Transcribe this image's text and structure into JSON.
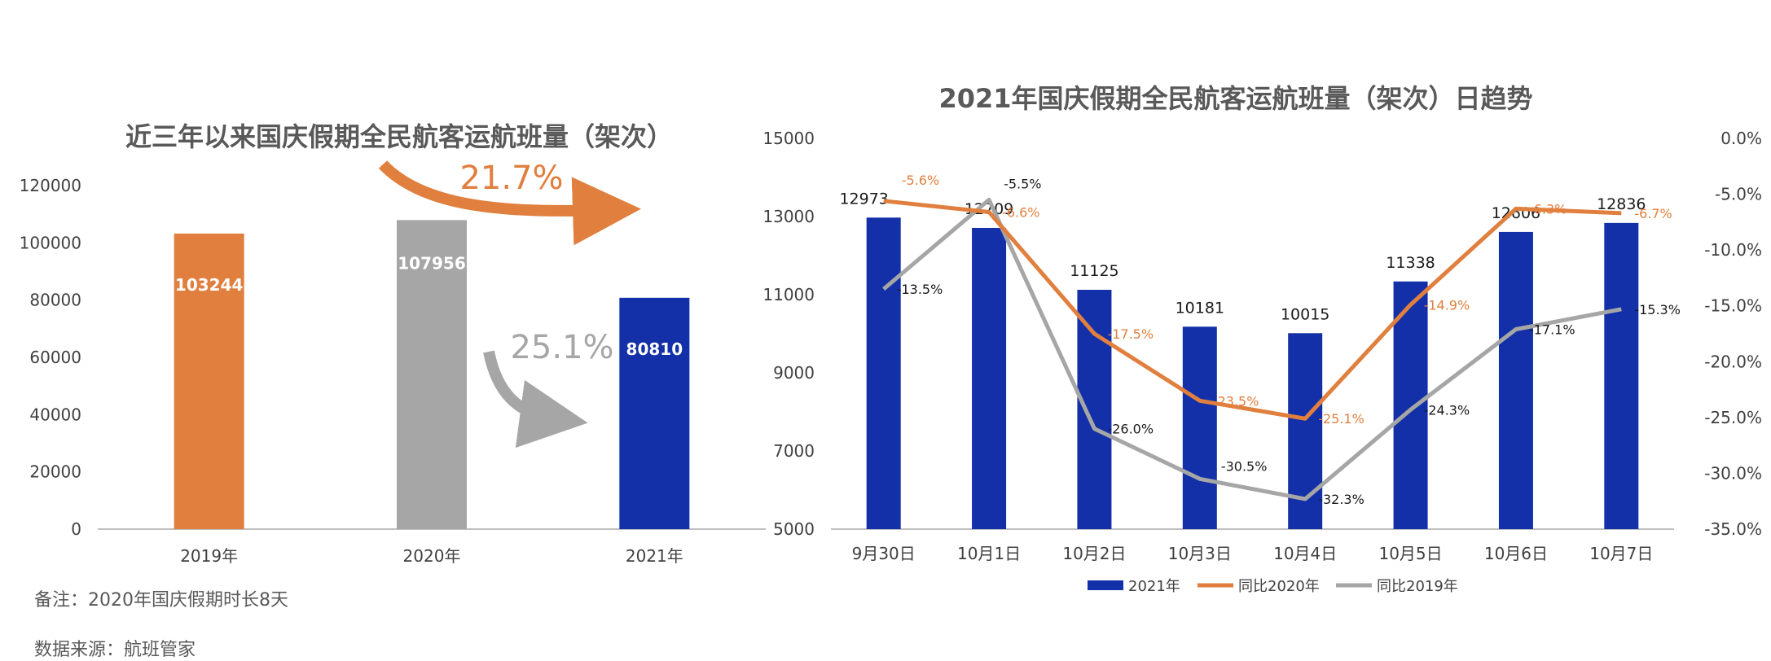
{
  "left_title": "近三年以来国庆假期全民航客运航班量（架次）",
  "right_title": "2021年国庆假期全民航客运航班量（架次）日趋势",
  "annotations": {
    "growth": "21.7%",
    "decline": "25.1%"
  },
  "notes": {
    "remark": "备注：2020年国庆假期时长8天",
    "source": "数据来源：航班管家"
  },
  "colors": {
    "orange": "#E07F3E",
    "gray": "#A6A6A6",
    "blue": "#1330A8",
    "axis": "#BFBFBF",
    "text": "#404040"
  },
  "chart_data": [
    {
      "type": "bar",
      "title": "近三年以来国庆假期全民航客运航班量（架次）",
      "categories": [
        "2019年",
        "2020年",
        "2021年"
      ],
      "values": [
        103244,
        107956,
        80810
      ],
      "bar_colors": [
        "#E07F3E",
        "#A6A6A6",
        "#1330A8"
      ],
      "ylim": [
        0,
        120000
      ],
      "yticks": [
        "0",
        "20000",
        "40000",
        "60000",
        "80000",
        "100000",
        "120000"
      ],
      "grid": false
    },
    {
      "type": "bar",
      "title": "2021年国庆假期全民航客运航班量（架次）日趋势",
      "categories": [
        "9月30日",
        "10月1日",
        "10月2日",
        "10月3日",
        "10月4日",
        "10月5日",
        "10月6日",
        "10月7日"
      ],
      "ylim": [
        5000,
        15000
      ],
      "yticks": [
        "5000",
        "7000",
        "9000",
        "11000",
        "13000",
        "15000"
      ],
      "y2lim": [
        -35,
        0
      ],
      "y2ticks": [
        "-35.0%",
        "-30.0%",
        "-25.0%",
        "-20.0%",
        "-15.0%",
        "-10.0%",
        "-5.0%",
        "0.0%"
      ],
      "legend_position": "bottom",
      "series": [
        {
          "name": "2021年",
          "type": "bar",
          "axis": "left",
          "color": "#1330A8",
          "values": [
            12973,
            12709,
            11125,
            10181,
            10015,
            11338,
            12606,
            12836
          ],
          "labels": [
            "12973",
            "12709",
            "11125",
            "10181",
            "10015",
            "11338",
            "12606",
            "12836"
          ]
        },
        {
          "name": "同比2020年",
          "type": "line",
          "axis": "right",
          "color": "#E07F3E",
          "values": [
            -5.6,
            -6.6,
            -17.5,
            -23.5,
            -25.1,
            -14.9,
            -6.3,
            -6.7
          ],
          "labels": [
            "-5.6%",
            "-6.6%",
            "-17.5%",
            "-23.5%",
            "-25.1%",
            "-14.9%",
            "-6.3%",
            "-6.7%"
          ]
        },
        {
          "name": "同比2019年",
          "type": "line",
          "axis": "right",
          "color": "#A6A6A6",
          "values": [
            -13.5,
            -5.5,
            -26.0,
            -30.5,
            -32.3,
            -24.3,
            -17.1,
            -15.3
          ],
          "labels": [
            "-13.5%",
            "-5.5%",
            "-26.0%",
            "-30.5%",
            "-32.3%",
            "-24.3%",
            "-17.1%",
            "-15.3%"
          ]
        }
      ]
    }
  ]
}
